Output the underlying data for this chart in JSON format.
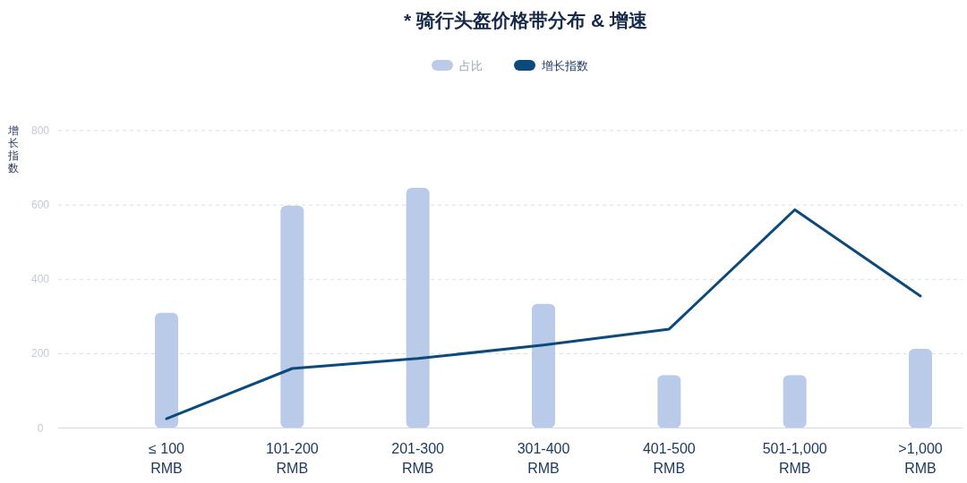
{
  "chart_data": {
    "type": "bar",
    "title": "* 骑行头盔价格带分布 & 增速",
    "ylabel": "增长指数",
    "categories": [
      "≤ 100 RMB",
      "101-200 RMB",
      "201-300 RMB",
      "301-400 RMB",
      "401-500 RMB",
      "501-1,000 RMB",
      ">1,000 RMB"
    ],
    "series": [
      {
        "name": "占比",
        "color": "#b9cbe9",
        "values": [
          310,
          598,
          646,
          334,
          142,
          142,
          213
        ]
      },
      {
        "name": "增长指数",
        "type": "line",
        "color": "#0d4a7c",
        "values": [
          25,
          160,
          187,
          223,
          266,
          587,
          355
        ]
      }
    ],
    "ylim": [
      0,
      800
    ],
    "yticks": [
      0,
      200,
      400,
      600,
      800
    ],
    "grid": "y",
    "legend": "top"
  }
}
